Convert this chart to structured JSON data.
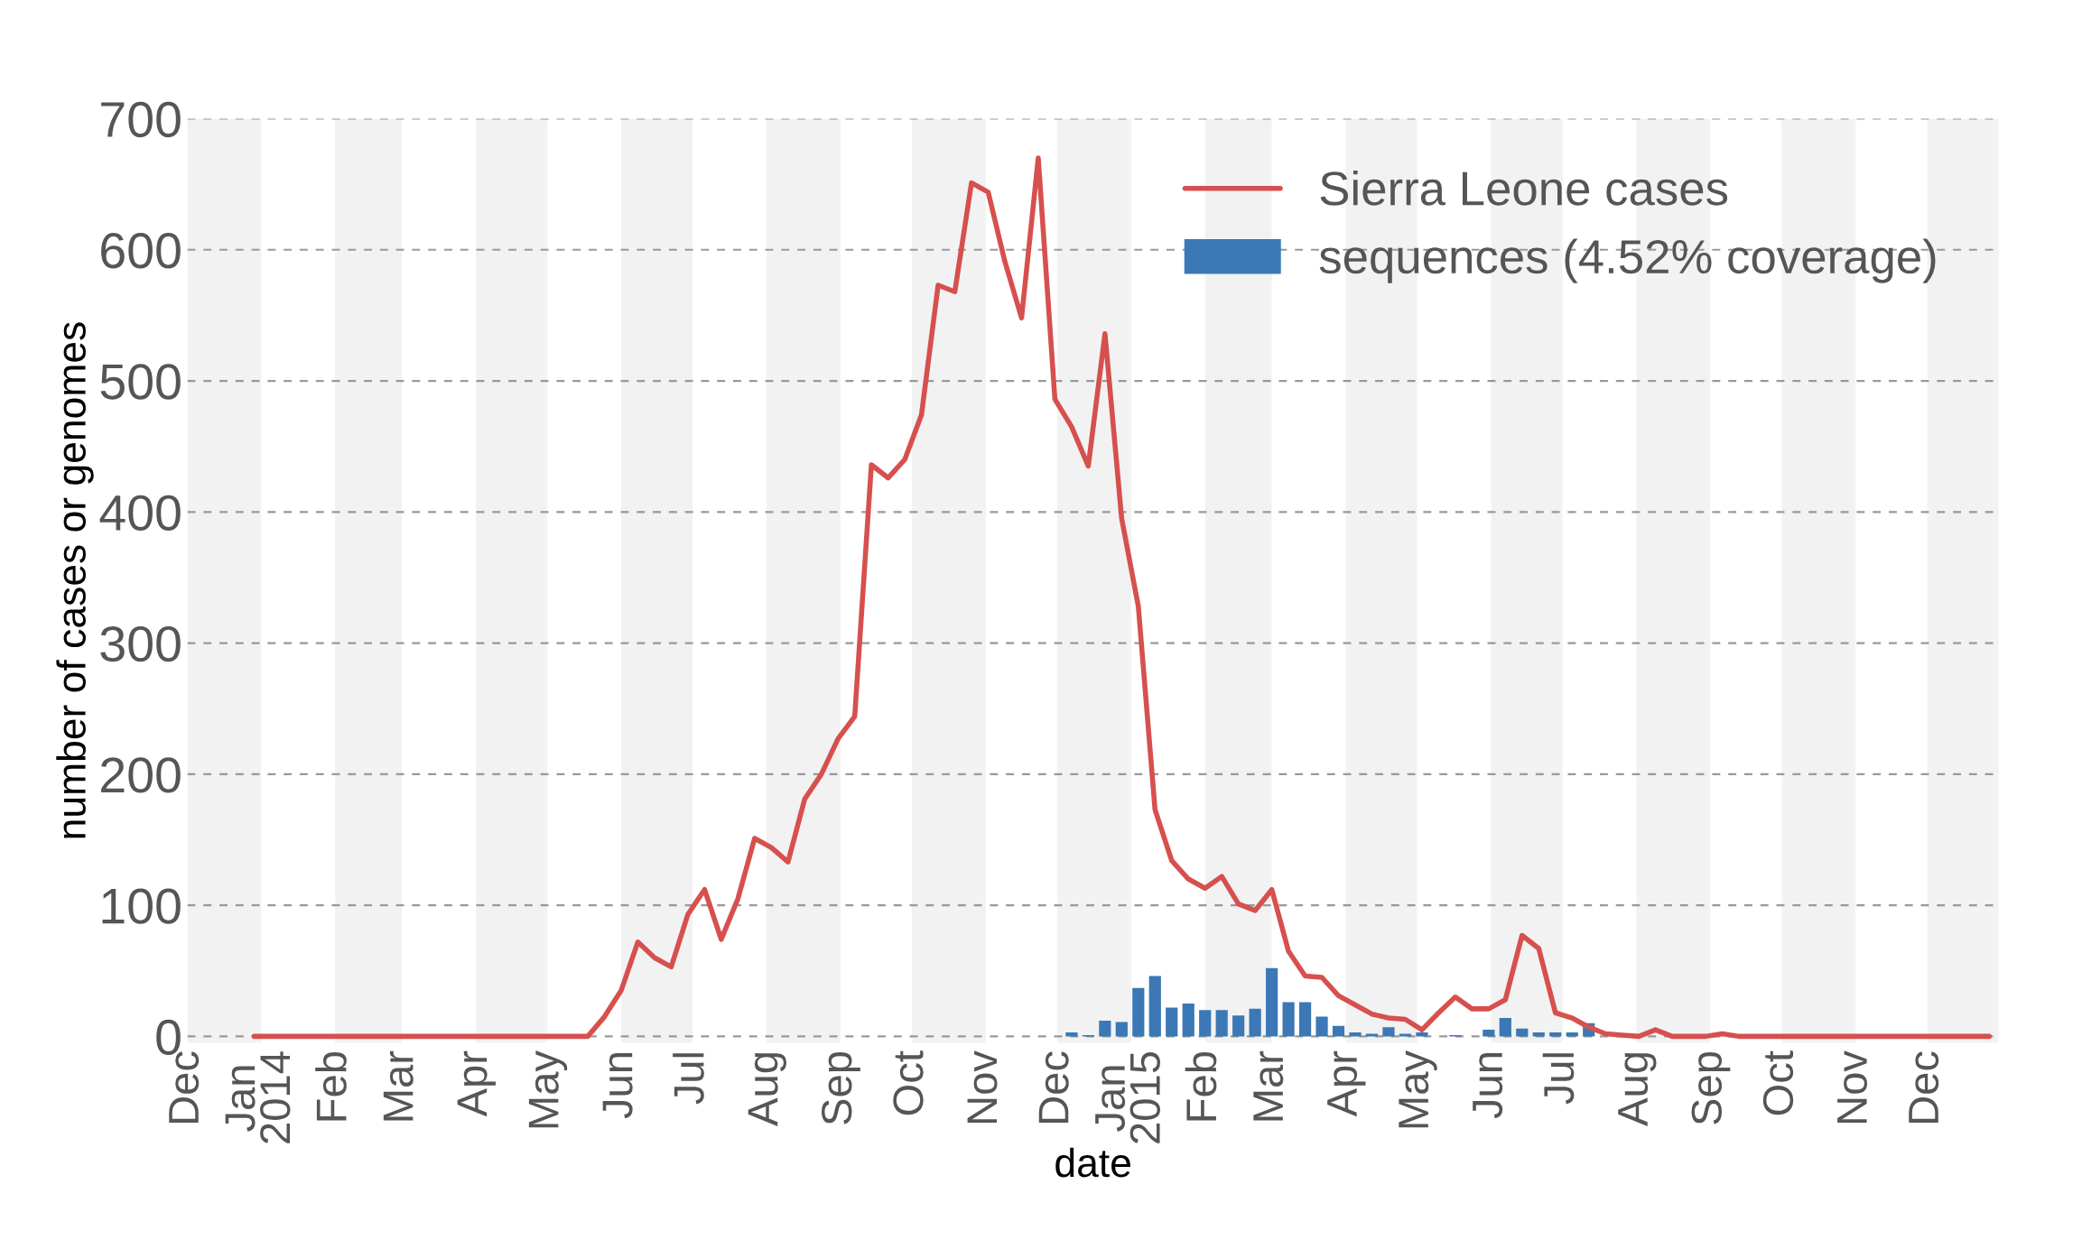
{
  "chart_data": {
    "type": "line",
    "ylabel": "number of cases or genomes",
    "xlabel": "date",
    "xlim": [
      "2013-12-01",
      "2015-12-31"
    ],
    "ylim": [
      -5,
      700
    ],
    "yticks": [
      0,
      100,
      200,
      300,
      400,
      500,
      600,
      700
    ],
    "xticks": [
      {
        "value": "2013-12-01",
        "label": "Dec"
      },
      {
        "value": "2014-01-01",
        "label": "Jan\n2014"
      },
      {
        "value": "2014-02-01",
        "label": "Feb"
      },
      {
        "value": "2014-03-01",
        "label": "Mar"
      },
      {
        "value": "2014-04-01",
        "label": "Apr"
      },
      {
        "value": "2014-05-01",
        "label": "May"
      },
      {
        "value": "2014-06-01",
        "label": "Jun"
      },
      {
        "value": "2014-07-01",
        "label": "Jul"
      },
      {
        "value": "2014-08-01",
        "label": "Aug"
      },
      {
        "value": "2014-09-01",
        "label": "Sep"
      },
      {
        "value": "2014-10-01",
        "label": "Oct"
      },
      {
        "value": "2014-11-01",
        "label": "Nov"
      },
      {
        "value": "2014-12-01",
        "label": "Dec"
      },
      {
        "value": "2015-01-01",
        "label": "Jan\n2015"
      },
      {
        "value": "2015-02-01",
        "label": "Feb"
      },
      {
        "value": "2015-03-01",
        "label": "Mar"
      },
      {
        "value": "2015-04-01",
        "label": "Apr"
      },
      {
        "value": "2015-05-01",
        "label": "May"
      },
      {
        "value": "2015-06-01",
        "label": "Jun"
      },
      {
        "value": "2015-07-01",
        "label": "Jul"
      },
      {
        "value": "2015-08-01",
        "label": "Aug"
      },
      {
        "value": "2015-09-01",
        "label": "Sep"
      },
      {
        "value": "2015-10-01",
        "label": "Oct"
      },
      {
        "value": "2015-11-01",
        "label": "Nov"
      },
      {
        "value": "2015-12-01",
        "label": "Dec"
      }
    ],
    "grid": "y",
    "legend": "top right",
    "bands": [
      {
        "axis": "x",
        "from": "2013-12-01",
        "to": "2014-01-01",
        "color": "#f2f2f2"
      },
      {
        "axis": "x",
        "from": "2014-02-01",
        "to": "2014-03-01",
        "color": "#f2f2f2"
      },
      {
        "axis": "x",
        "from": "2014-04-01",
        "to": "2014-05-01",
        "color": "#f2f2f2"
      },
      {
        "axis": "x",
        "from": "2014-06-01",
        "to": "2014-07-01",
        "color": "#f2f2f2"
      },
      {
        "axis": "x",
        "from": "2014-08-01",
        "to": "2014-09-01",
        "color": "#f2f2f2"
      },
      {
        "axis": "x",
        "from": "2014-10-01",
        "to": "2014-11-01",
        "color": "#f2f2f2"
      },
      {
        "axis": "x",
        "from": "2014-12-01",
        "to": "2015-01-01",
        "color": "#f2f2f2"
      },
      {
        "axis": "x",
        "from": "2015-02-01",
        "to": "2015-03-01",
        "color": "#f2f2f2"
      },
      {
        "axis": "x",
        "from": "2015-04-01",
        "to": "2015-05-01",
        "color": "#f2f2f2"
      },
      {
        "axis": "x",
        "from": "2015-06-01",
        "to": "2015-07-01",
        "color": "#f2f2f2"
      },
      {
        "axis": "x",
        "from": "2015-08-01",
        "to": "2015-09-01",
        "color": "#f2f2f2"
      },
      {
        "axis": "x",
        "from": "2015-10-01",
        "to": "2015-11-01",
        "color": "#f2f2f2"
      },
      {
        "axis": "x",
        "from": "2015-12-01",
        "to": "2015-12-31",
        "color": "#f2f2f2"
      }
    ],
    "series": [
      {
        "name": "Sierra Leone cases",
        "color": "#d6504e",
        "x": [
          "2013-12-29",
          "2014-05-18",
          "2014-05-25",
          "2014-06-01",
          "2014-06-08",
          "2014-06-15",
          "2014-06-22",
          "2014-06-29",
          "2014-07-06",
          "2014-07-13",
          "2014-07-20",
          "2014-07-27",
          "2014-08-03",
          "2014-08-10",
          "2014-08-17",
          "2014-08-24",
          "2014-08-31",
          "2014-09-07",
          "2014-09-14",
          "2014-09-21",
          "2014-09-28",
          "2014-10-05",
          "2014-10-12",
          "2014-10-19",
          "2014-10-26",
          "2014-11-02",
          "2014-11-09",
          "2014-11-16",
          "2014-11-23",
          "2014-11-30",
          "2014-12-07",
          "2014-12-14",
          "2014-12-21",
          "2014-12-28",
          "2015-01-04",
          "2015-01-11",
          "2015-01-18",
          "2015-01-25",
          "2015-02-01",
          "2015-02-08",
          "2015-02-15",
          "2015-02-22",
          "2015-03-01",
          "2015-03-08",
          "2015-03-15",
          "2015-03-22",
          "2015-03-29",
          "2015-04-05",
          "2015-04-12",
          "2015-04-19",
          "2015-04-26",
          "2015-05-03",
          "2015-05-10",
          "2015-05-17",
          "2015-05-24",
          "2015-05-31",
          "2015-06-07",
          "2015-06-14",
          "2015-06-21",
          "2015-06-28",
          "2015-07-05",
          "2015-07-12",
          "2015-07-19",
          "2015-07-26",
          "2015-08-02",
          "2015-08-09",
          "2015-08-16",
          "2015-08-23",
          "2015-08-30",
          "2015-09-06",
          "2015-09-13",
          "2015-12-27"
        ],
        "values": [
          0,
          0,
          15,
          35,
          72,
          60,
          53,
          93,
          112,
          74,
          105,
          151,
          144,
          133,
          181,
          200,
          227,
          244,
          436,
          426,
          440,
          474,
          573,
          568,
          651,
          644,
          591,
          548,
          670,
          486,
          465,
          435,
          536,
          395,
          328,
          173,
          134,
          120,
          113,
          122,
          101,
          96,
          112,
          65,
          46,
          45,
          31,
          24,
          17,
          14,
          13,
          5,
          18,
          30,
          21,
          21,
          28,
          77,
          67,
          18,
          14,
          7,
          2,
          1,
          0,
          5,
          0,
          0,
          0,
          2,
          0,
          0
        ]
      },
      {
        "name": "sequences (4.52% coverage)",
        "type": "bar",
        "color": "#3b78b5",
        "x": [
          "2014-12-07",
          "2014-12-14",
          "2014-12-21",
          "2014-12-28",
          "2015-01-04",
          "2015-01-11",
          "2015-01-18",
          "2015-01-25",
          "2015-02-01",
          "2015-02-08",
          "2015-02-15",
          "2015-02-22",
          "2015-03-01",
          "2015-03-08",
          "2015-03-15",
          "2015-03-22",
          "2015-03-29",
          "2015-04-05",
          "2015-04-12",
          "2015-04-19",
          "2015-04-26",
          "2015-05-03",
          "2015-05-10",
          "2015-05-17",
          "2015-05-24",
          "2015-05-31",
          "2015-06-07",
          "2015-06-14",
          "2015-06-21",
          "2015-06-28",
          "2015-07-05",
          "2015-07-12"
        ],
        "values": [
          3,
          1,
          12,
          11,
          37,
          46,
          22,
          25,
          20,
          20,
          16,
          21,
          52,
          26,
          26,
          15,
          8,
          3,
          2,
          7,
          2,
          3,
          null,
          1,
          null,
          5,
          14,
          6,
          3,
          3,
          3,
          10
        ]
      }
    ]
  }
}
